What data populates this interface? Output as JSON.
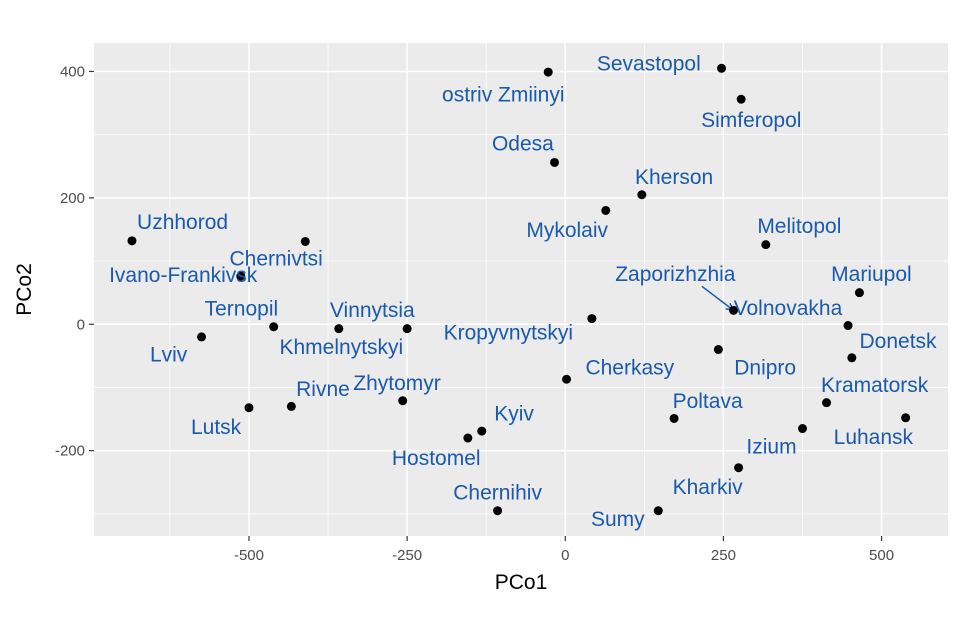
{
  "chart_data": {
    "type": "scatter",
    "xlabel": "PCo1",
    "ylabel": "PCo2",
    "xlim": [
      -745,
      605
    ],
    "ylim": [
      -335,
      445
    ],
    "x_ticks": [
      -500,
      -250,
      0,
      250,
      500
    ],
    "x_tick_labels": [
      "-500",
      "-250",
      "0",
      "250",
      "500"
    ],
    "y_ticks": [
      -200,
      0,
      200,
      400
    ],
    "y_tick_labels": [
      "-200",
      "0",
      "200",
      "400"
    ],
    "grid": true,
    "panel_background": "#ebebeb",
    "grid_color": "#ffffff",
    "point_color": "#000000",
    "label_color": "#1a5aad",
    "points": [
      {
        "name": "Sevastopol",
        "x": 247,
        "y": 405,
        "lx": 132,
        "ly": 412
      },
      {
        "name": "ostriv Zmiinyi",
        "x": -27,
        "y": 399,
        "lx": -98,
        "ly": 363
      },
      {
        "name": "Simferopol",
        "x": 278,
        "y": 356,
        "lx": 294,
        "ly": 322
      },
      {
        "name": "Odesa",
        "x": -17,
        "y": 256,
        "lx": -67,
        "ly": 285
      },
      {
        "name": "Kherson",
        "x": 121,
        "y": 205,
        "lx": 172,
        "ly": 232
      },
      {
        "name": "Mykolaiv",
        "x": 64,
        "y": 180,
        "lx": 3,
        "ly": 148
      },
      {
        "name": "Uzhhorod",
        "x": -685,
        "y": 132,
        "lx": -605,
        "ly": 161
      },
      {
        "name": "Chernivtsi",
        "x": -411,
        "y": 131,
        "lx": -457,
        "ly": 103
      },
      {
        "name": "Melitopol",
        "x": 317,
        "y": 126,
        "lx": 370,
        "ly": 155
      },
      {
        "name": "Ivano-Frankivsk",
        "x": -513,
        "y": 76,
        "lx": -604,
        "ly": 77
      },
      {
        "name": "Zaporizhzhia",
        "x": 266,
        "y": 22,
        "lx": 174,
        "ly": 79
      },
      {
        "name": "Mariupol",
        "x": 465,
        "y": 50,
        "lx": 484,
        "ly": 79
      },
      {
        "name": "Volnovakha",
        "x": 447,
        "y": -2,
        "lx": 352,
        "ly": 25
      },
      {
        "name": "Ternopil",
        "x": -461,
        "y": -4,
        "lx": -512,
        "ly": 24
      },
      {
        "name": "Vinnytsia",
        "x": -358,
        "y": -7,
        "lx": -305,
        "ly": 22
      },
      {
        "name": "Khmelnytskyi",
        "x": -250,
        "y": -7,
        "lx": -354,
        "ly": -37
      },
      {
        "name": "Kropyvnytskyi",
        "x": 42,
        "y": 9,
        "lx": -90,
        "ly": -14
      },
      {
        "name": "Lviv",
        "x": -575,
        "y": -20,
        "lx": -627,
        "ly": -49
      },
      {
        "name": "Donetsk",
        "x": 453,
        "y": -53,
        "lx": 526,
        "ly": -27
      },
      {
        "name": "Dnipro",
        "x": 242,
        "y": -40,
        "lx": 316,
        "ly": -69
      },
      {
        "name": "Cherkasy",
        "x": 2,
        "y": -87,
        "lx": 102,
        "ly": -69
      },
      {
        "name": "Zhytomyr",
        "x": -257,
        "y": -121,
        "lx": -266,
        "ly": -94
      },
      {
        "name": "Rivne",
        "x": -433,
        "y": -130,
        "lx": -383,
        "ly": -103
      },
      {
        "name": "Lutsk",
        "x": -500,
        "y": -132,
        "lx": -552,
        "ly": -163
      },
      {
        "name": "Kramatorsk",
        "x": 413,
        "y": -124,
        "lx": 489,
        "ly": -97
      },
      {
        "name": "Poltava",
        "x": 172,
        "y": -149,
        "lx": 225,
        "ly": -122
      },
      {
        "name": "Luhansk",
        "x": 538,
        "y": -148,
        "lx": 487,
        "ly": -179
      },
      {
        "name": "Kyiv",
        "x": -132,
        "y": -169,
        "lx": -81,
        "ly": -142
      },
      {
        "name": "Hostomel",
        "x": -154,
        "y": -180,
        "lx": -204,
        "ly": -212
      },
      {
        "name": "Izium",
        "x": 375,
        "y": -165,
        "lx": 326,
        "ly": -194
      },
      {
        "name": "Kharkiv",
        "x": 274,
        "y": -227,
        "lx": 225,
        "ly": -258
      },
      {
        "name": "Chernihiv",
        "x": -107,
        "y": -295,
        "lx": -107,
        "ly": -267
      },
      {
        "name": "Sumy",
        "x": 147,
        "y": -295,
        "lx": 83,
        "ly": -309
      }
    ],
    "leader_lines": [
      {
        "from": "Zaporizhzhia",
        "x1": 216,
        "y1": 60,
        "x2": 266,
        "y2": 22
      }
    ]
  }
}
